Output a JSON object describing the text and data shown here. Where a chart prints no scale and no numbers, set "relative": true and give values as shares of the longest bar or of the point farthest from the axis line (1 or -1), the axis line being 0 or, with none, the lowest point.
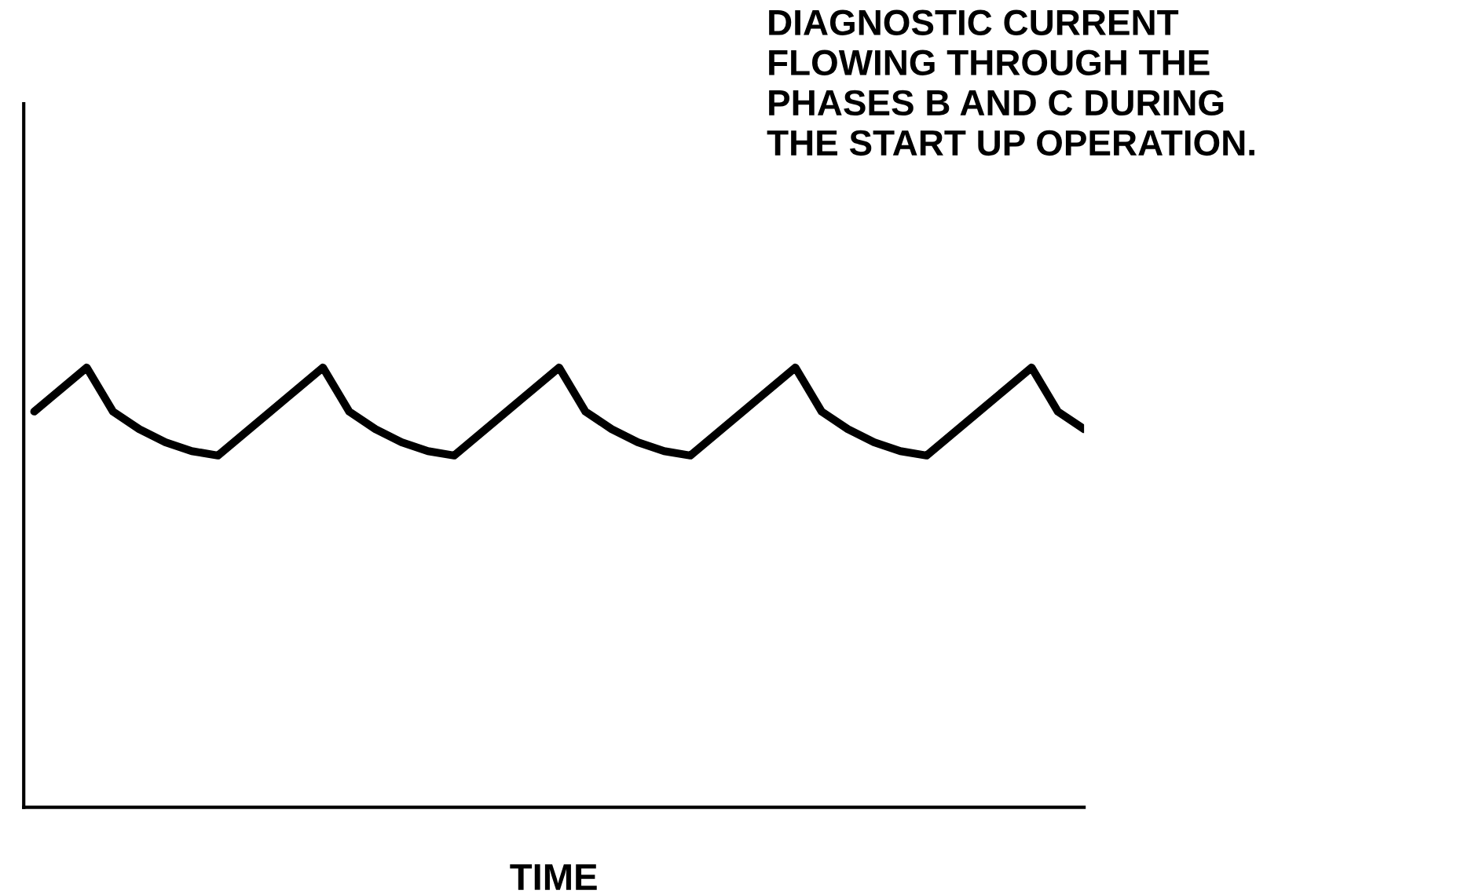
{
  "chart_data": {
    "type": "line",
    "relative": true,
    "xlabel": "TIME",
    "annotations": [
      "DIAGNOSTIC CURRENT\nFLOWING THROUGH THE\nPHASES B AND C DURING\nTHE START UP OPERATION."
    ],
    "categories": [
      null,
      null,
      null,
      null,
      null,
      null,
      null,
      null,
      null,
      null,
      null,
      null,
      null,
      null,
      null,
      null,
      null,
      null,
      null,
      null,
      null,
      null,
      null,
      null,
      null,
      null,
      null,
      null,
      null,
      null,
      null,
      null,
      null,
      null,
      null,
      null,
      null,
      null,
      null,
      null,
      null
    ],
    "series": [
      {
        "color": "#000000",
        "values": [
          0.9,
          0.95,
          1,
          0.9,
          0.86,
          0.83,
          0.81,
          0.8,
          0.85,
          0.9,
          0.95,
          1,
          0.9,
          0.86,
          0.83,
          0.81,
          0.8,
          0.85,
          0.9,
          0.95,
          1,
          0.9,
          0.86,
          0.83,
          0.81,
          0.8,
          0.85,
          0.9,
          0.95,
          1,
          0.9,
          0.86,
          0.83,
          0.81,
          0.8,
          0.85,
          0.9,
          0.95,
          1,
          0.9,
          0.86
        ]
      }
    ],
    "grid": false,
    "legend": false,
    "marker": "none",
    "line_style": "solid"
  }
}
